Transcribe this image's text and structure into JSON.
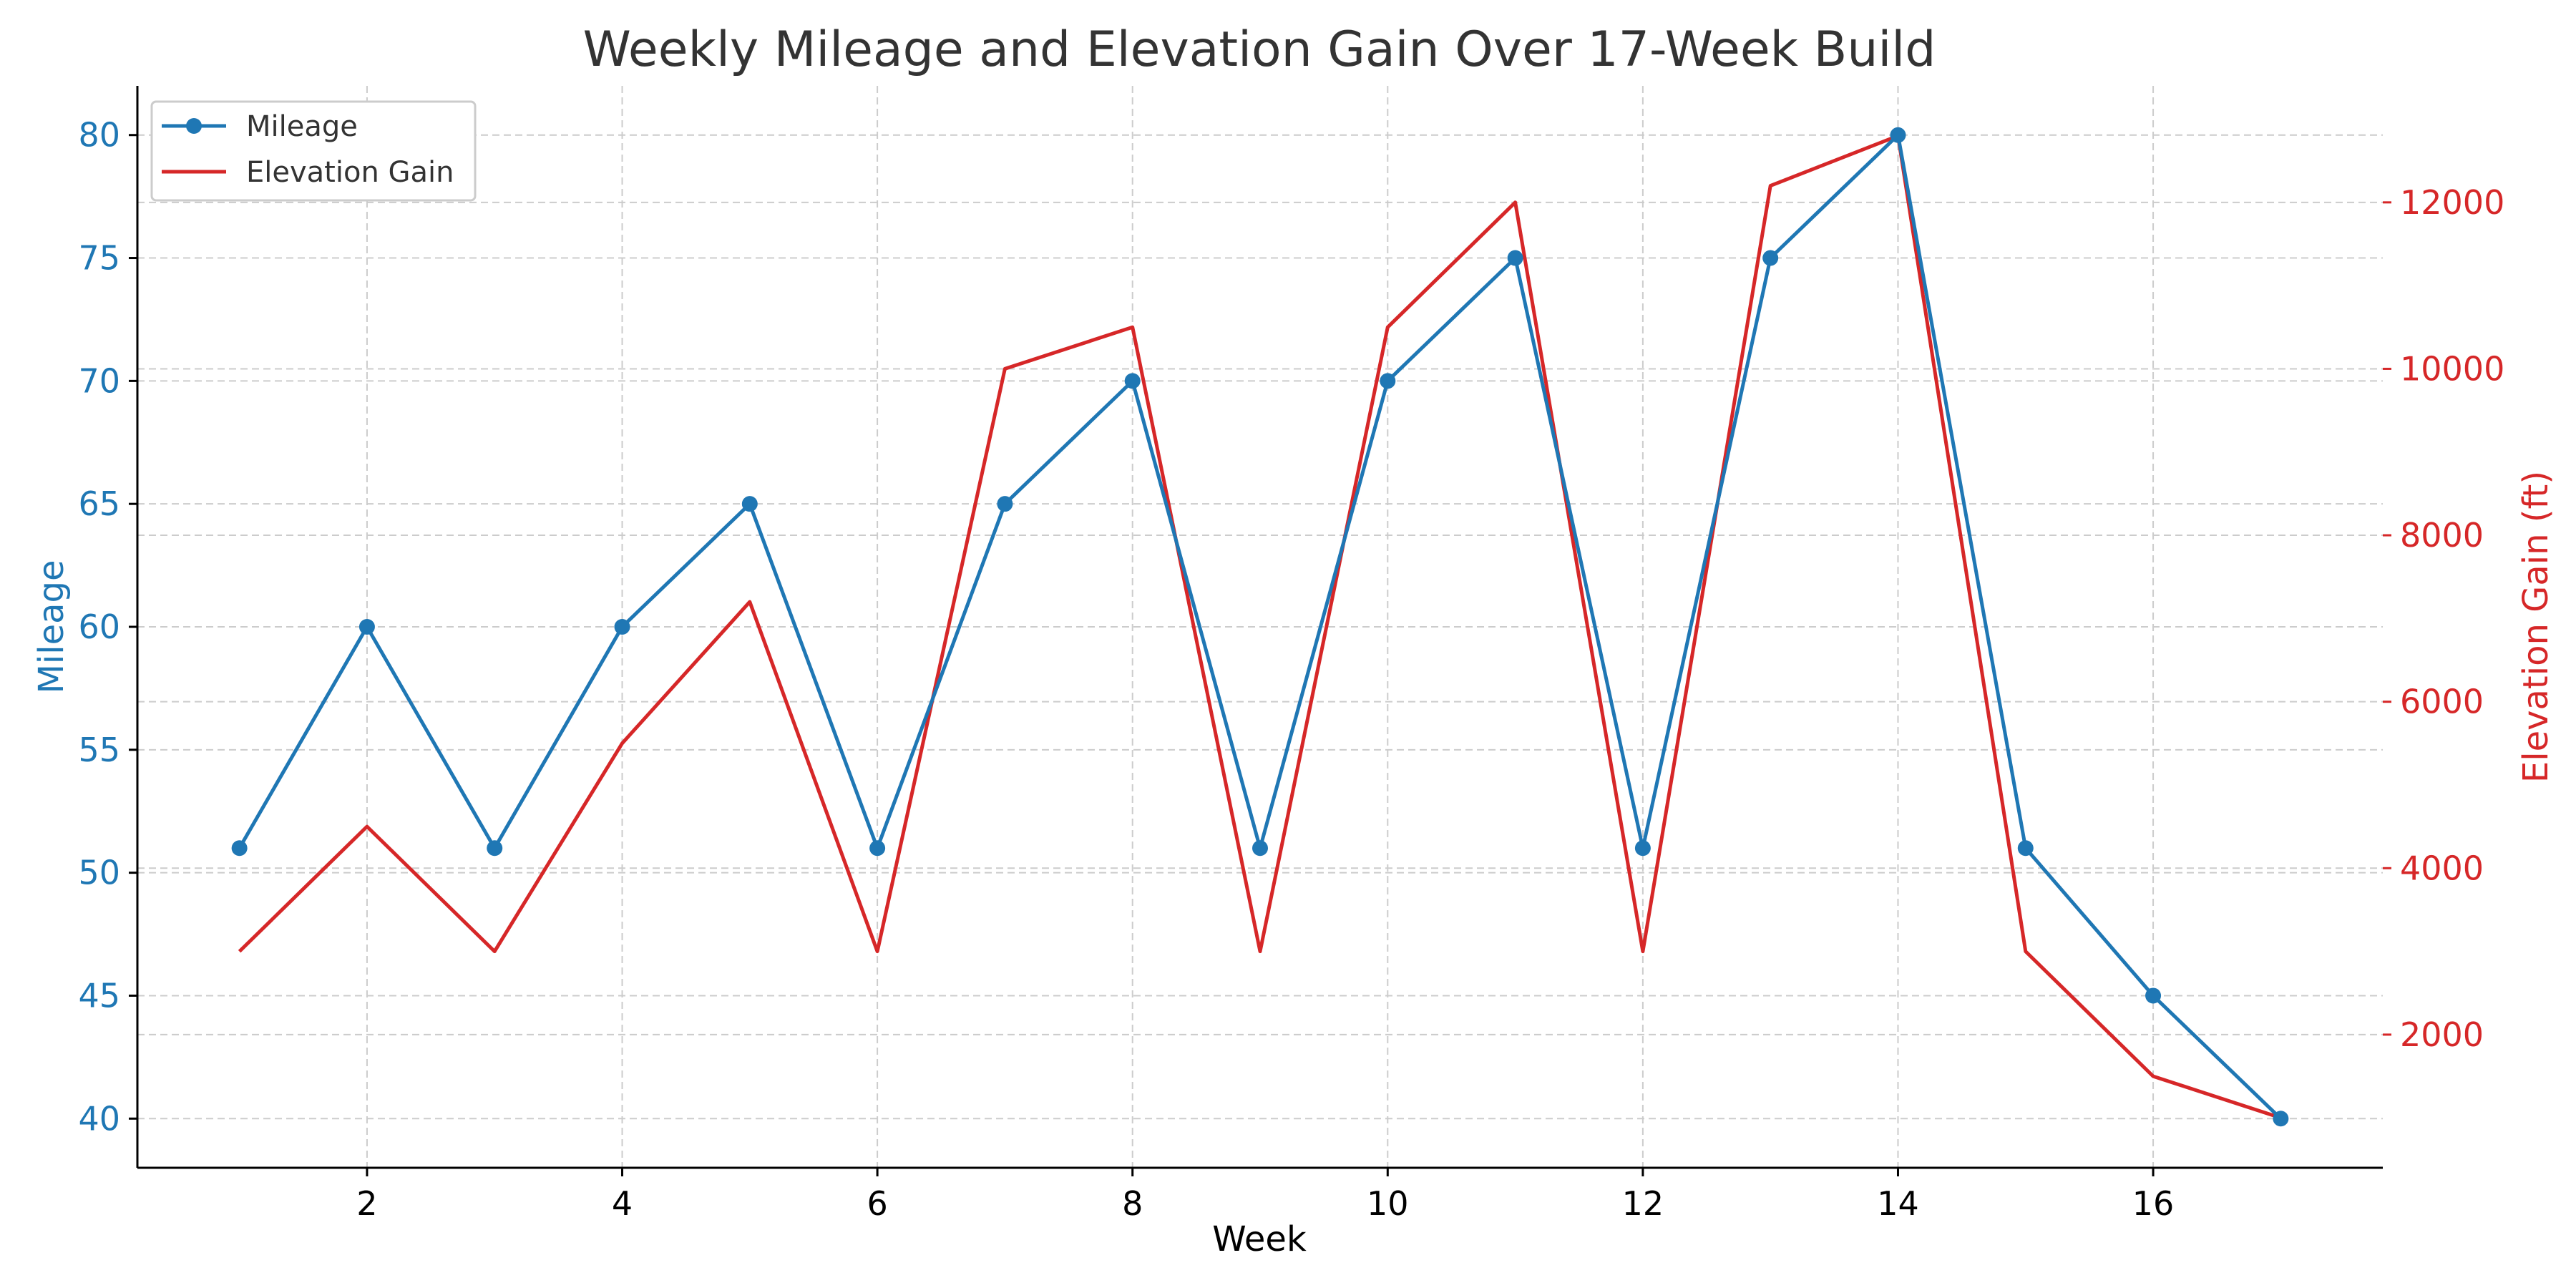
{
  "chart_data": {
    "type": "line",
    "title": "Weekly Mileage and Elevation Gain Over 17-Week Build",
    "xlabel": "Week",
    "ylabel": "Mileage",
    "y2label": "Elevation Gain (ft)",
    "x": [
      1,
      2,
      3,
      4,
      5,
      6,
      7,
      8,
      9,
      10,
      11,
      12,
      13,
      14,
      15,
      16,
      17
    ],
    "xticks": [
      2,
      4,
      6,
      8,
      10,
      12,
      14,
      16
    ],
    "xlim": [
      0.2,
      17.8
    ],
    "ylim": [
      38,
      82
    ],
    "yticks": [
      40,
      45,
      50,
      55,
      60,
      65,
      70,
      75,
      80
    ],
    "y2lim": [
      400,
      13400
    ],
    "y2ticks": [
      2000,
      4000,
      6000,
      8000,
      10000,
      12000
    ],
    "grid": true,
    "legend_position": "top-left",
    "series": [
      {
        "name": "Mileage",
        "axis": "left",
        "color": "#1f77b4",
        "marker": "circle",
        "values": [
          51,
          60,
          51,
          60,
          65,
          51,
          65,
          70,
          51,
          70,
          75,
          51,
          75,
          80,
          51,
          45,
          40
        ]
      },
      {
        "name": "Elevation Gain",
        "axis": "right",
        "color": "#d62728",
        "marker": "none",
        "values": [
          3000,
          4500,
          3000,
          5500,
          7200,
          3000,
          10000,
          10500,
          3000,
          10500,
          12000,
          3000,
          12200,
          12800,
          3000,
          1500,
          1000
        ]
      }
    ]
  }
}
